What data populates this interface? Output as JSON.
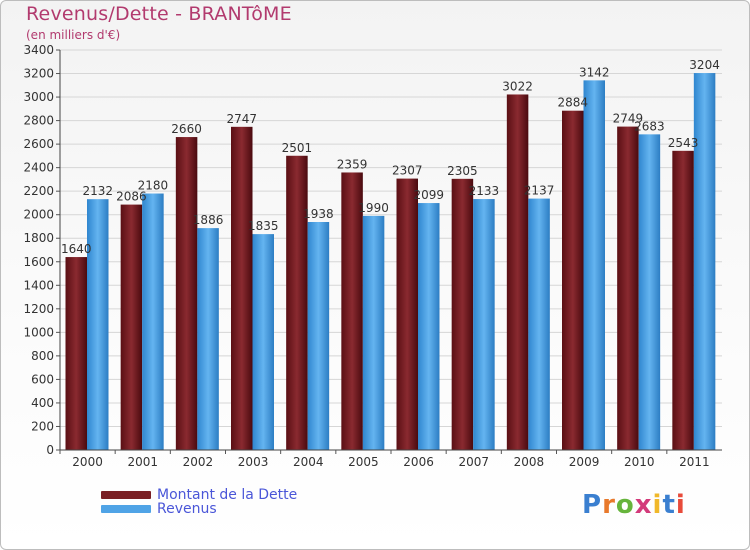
{
  "title": "Revenus/Dette - BRANTôME",
  "subtitle": "(en milliers d'€)",
  "brand": "Proxiti",
  "colors": {
    "dette": "#7a1f24",
    "revenus": "#4fa3e6",
    "title": "#b23a6e",
    "legend_text": "#4a56d8"
  },
  "chart_data": {
    "type": "bar",
    "categories": [
      "2000",
      "2001",
      "2002",
      "2003",
      "2004",
      "2005",
      "2006",
      "2007",
      "2008",
      "2009",
      "2010",
      "2011"
    ],
    "series": [
      {
        "name": "Montant de la Dette",
        "color": "#7a1f24",
        "values": [
          1640,
          2086,
          2660,
          2747,
          2501,
          2359,
          2307,
          2305,
          3022,
          2884,
          2749,
          2543
        ]
      },
      {
        "name": "Revenus",
        "color": "#4fa3e6",
        "values": [
          2132,
          2180,
          1886,
          1835,
          1938,
          1990,
          2099,
          2133,
          2137,
          3142,
          2683,
          3204
        ]
      }
    ],
    "ylim": [
      0,
      3400
    ],
    "yticks": [
      0,
      200,
      400,
      600,
      800,
      1000,
      1200,
      1400,
      1600,
      1800,
      2000,
      2200,
      2400,
      2600,
      2800,
      3000,
      3200,
      3400
    ],
    "grid": true,
    "legend": "bottom-left"
  }
}
